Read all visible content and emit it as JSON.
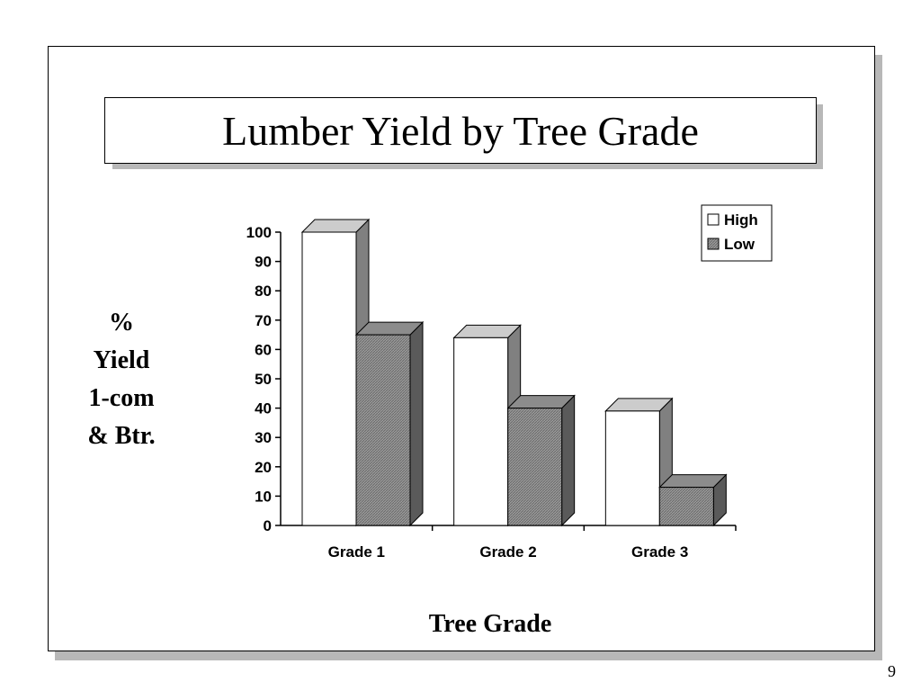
{
  "slide": {
    "title": "Lumber Yield by Tree Grade",
    "page_number": "9"
  },
  "colors": {
    "high_fill": "#ffffff",
    "low_fill": "#8c8c8c",
    "low_side": "#5a5a5a",
    "high_top": "#cccccc",
    "high_side": "#808080"
  },
  "chart_data": {
    "type": "bar",
    "title": "",
    "xlabel": "Tree Grade",
    "ylabel_lines": [
      "%",
      "Yield",
      "1-com",
      "& Btr."
    ],
    "categories": [
      "Grade 1",
      "Grade 2",
      "Grade 3"
    ],
    "series": [
      {
        "name": "High",
        "values": [
          100,
          64,
          39
        ]
      },
      {
        "name": "Low",
        "values": [
          65,
          40,
          13
        ]
      }
    ],
    "ylim": [
      0,
      100
    ],
    "yticks": [
      0,
      10,
      20,
      30,
      40,
      50,
      60,
      70,
      80,
      90,
      100
    ],
    "grid": false,
    "legend_position": "top-right",
    "style": "3d-bar"
  }
}
